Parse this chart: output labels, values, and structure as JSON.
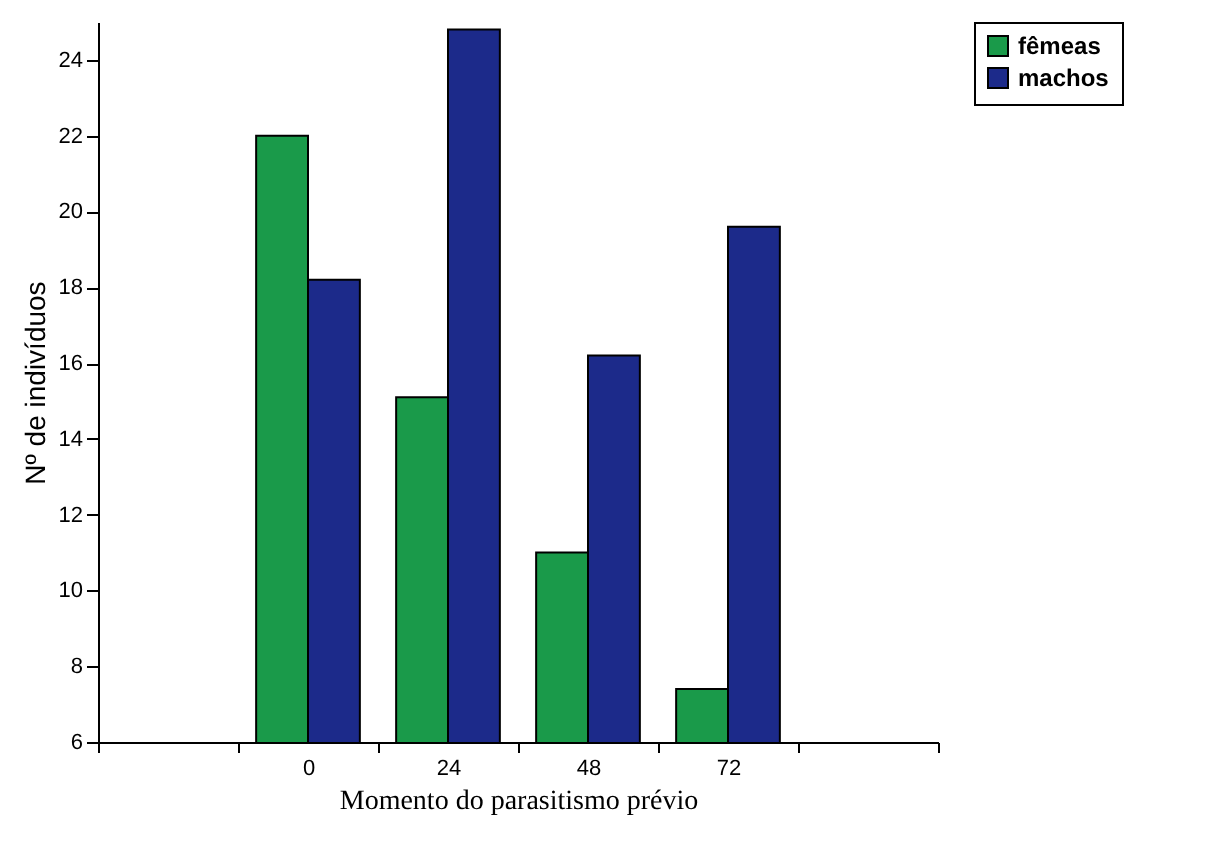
{
  "chart_data": {
    "type": "bar",
    "xlabel": "Momento do parasitismo prévio",
    "ylabel": "Nº de indivíduos",
    "categories": [
      null,
      "0",
      "24",
      "48",
      "72",
      null
    ],
    "series": [
      {
        "name": "fêmeas",
        "color": "#1a9a4a",
        "values": [
          null,
          22,
          15.1,
          11,
          7.4,
          null
        ]
      },
      {
        "name": "machos",
        "color": "#1c2a8a",
        "values": [
          null,
          18.2,
          24.8,
          16.2,
          19.6,
          null
        ]
      }
    ],
    "ylim": [
      6,
      25
    ],
    "yticks": [
      6,
      8,
      10,
      12,
      14,
      16,
      18,
      20,
      22,
      24
    ],
    "grid": false,
    "legend": "right"
  }
}
